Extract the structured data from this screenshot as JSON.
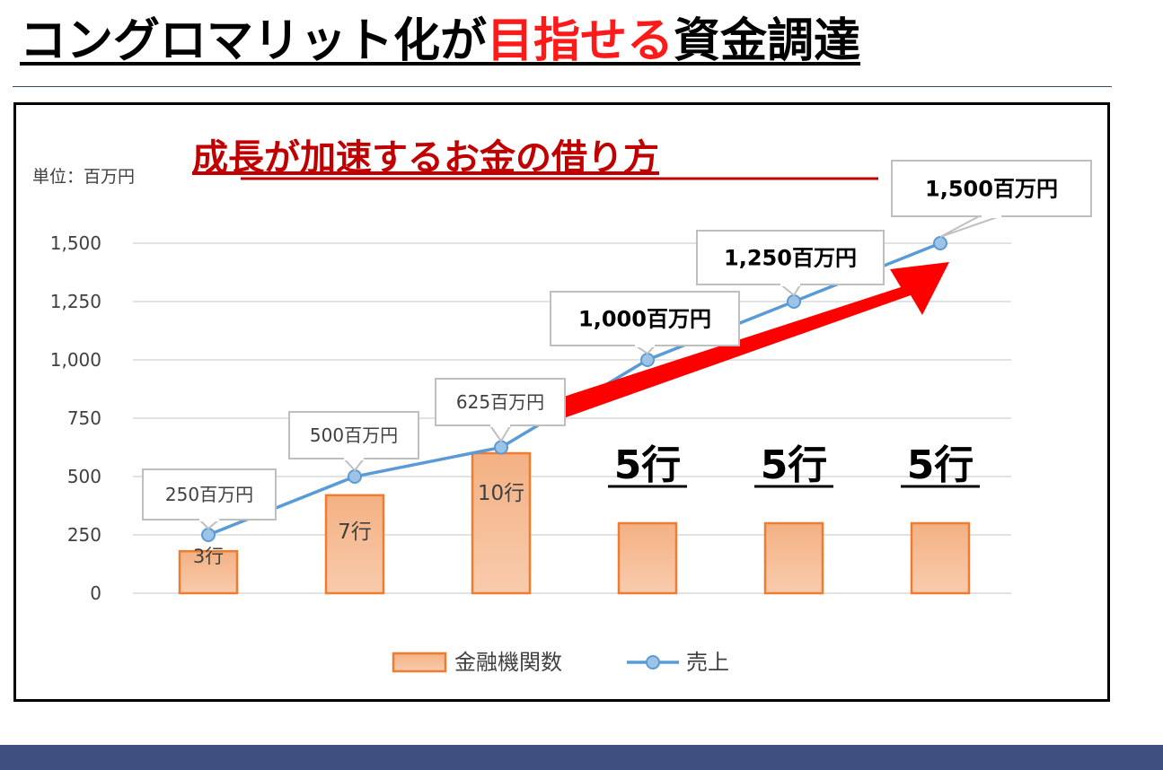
{
  "slide": {
    "title_pre": "コングロマリット化が",
    "title_highlight": "目指せる",
    "title_post": "資金調達"
  },
  "colors": {
    "bar_fill": "#f4b183",
    "bar_stroke": "#ed7d31",
    "line": "#5b9bd5",
    "title_red": "#c00000",
    "arrow": "#ff0000"
  },
  "chart_data": {
    "type": "bar+line",
    "title": "成長が加速するお金の借り方",
    "unit_label": "単位：百万円",
    "ylim": [
      0,
      1500
    ],
    "yticks": [
      "0",
      "250",
      "500",
      "750",
      "1,000",
      "1,250",
      "1,500"
    ],
    "grid": true,
    "legend_position": "bottom",
    "series": [
      {
        "name": "金融機関数",
        "kind": "bar",
        "values": [
          180,
          420,
          600,
          300,
          300,
          300
        ],
        "labels": [
          "3行",
          "7行",
          "10行",
          "5行",
          "5行",
          "5行"
        ]
      },
      {
        "name": "売上",
        "kind": "line",
        "values": [
          250,
          500,
          625,
          1000,
          1250,
          1500
        ],
        "labels": [
          "250百万円",
          "500百万円",
          "625百万円",
          "1,000百万円",
          "1,250百万円",
          "1,500百万円"
        ]
      }
    ],
    "annotation": "growth-arrow"
  }
}
